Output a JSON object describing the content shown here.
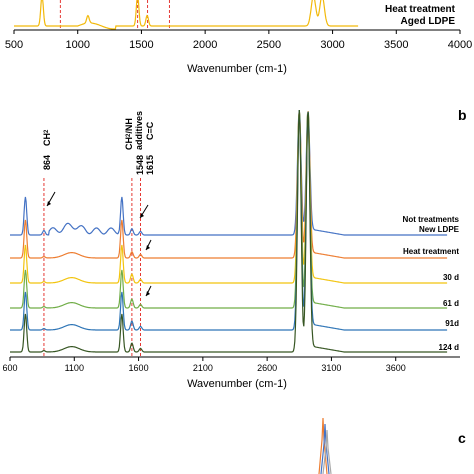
{
  "chart_data": [
    {
      "panel": "top",
      "type": "line",
      "xlabel": "Wavenumber (cm-1)",
      "xlim": [
        500,
        4000
      ],
      "x_ticks": [
        "500",
        "1000",
        "1500",
        "2000",
        "2500",
        "3000",
        "3500",
        "4000"
      ],
      "x_tick_values": [
        500,
        1000,
        1500,
        2000,
        2500,
        3000,
        3500,
        4000
      ],
      "legend": [
        "Heat treatment",
        "Aged LDPE"
      ],
      "marked_wavenumbers": [
        864,
        1470,
        1548,
        1720
      ],
      "series": [
        {
          "color": "#f2b90a",
          "peaks": [
            [
              720,
              1.0
            ],
            [
              1080,
              0.25
            ],
            [
              1470,
              1.0
            ],
            [
              1545,
              0.35
            ],
            [
              2850,
              1.0
            ],
            [
              2918,
              1.0
            ]
          ]
        }
      ]
    },
    {
      "panel": "b",
      "type": "line",
      "xlabel": "Wavenumber (cm-1)",
      "xlim": [
        600,
        4100
      ],
      "x_ticks": [
        "600",
        "1100",
        "1600",
        "2100",
        "2600",
        "3100",
        "3600"
      ],
      "x_tick_values": [
        600,
        1100,
        1600,
        2100,
        2600,
        3100,
        3600
      ],
      "marked_wavenumbers": [
        864,
        1548,
        1615
      ],
      "annotations": [
        {
          "text": "864",
          "x": 864
        },
        {
          "text": "CH₂",
          "x": 864
        },
        {
          "text": "1548",
          "x": 1548
        },
        {
          "text": "1615",
          "x": 1615
        },
        {
          "text": "CH₂/NH",
          "x": 1480
        },
        {
          "text": "additives",
          "x": 1500
        },
        {
          "text": "C=C",
          "x": 1640
        }
      ],
      "series": [
        {
          "name": "Not treatments New LDPE",
          "color": "#4472c4"
        },
        {
          "name": "Heat treatment",
          "color": "#ed7d31"
        },
        {
          "name": "30 d",
          "color": "#f2c40f"
        },
        {
          "name": "61 d",
          "color": "#70ad47"
        },
        {
          "name": "91d",
          "color": "#2e75b6"
        },
        {
          "name": "124 d",
          "color": "#375623"
        }
      ],
      "peaks": [
        [
          720,
          1.0
        ],
        [
          864,
          0.25
        ],
        [
          1080,
          0.3
        ],
        [
          1470,
          1.0
        ],
        [
          1548,
          0.35
        ],
        [
          1615,
          0.2
        ],
        [
          2850,
          1.0
        ],
        [
          2918,
          1.0
        ]
      ]
    },
    {
      "panel": "c",
      "type": "line",
      "series": [
        {
          "color": "#ed7d31"
        },
        {
          "color": "#4472c4"
        },
        {
          "color": "#a9a9a9"
        }
      ]
    }
  ],
  "labels": {
    "top_legend_1": "Heat treatment",
    "top_legend_2": "Aged LDPE",
    "top_xlabel": "Wavenumber (cm-1)",
    "b_xlabel": "Wavenumber (cm-1)",
    "panel_b": "b",
    "panel_c": "c",
    "ann_864": "864",
    "ann_ch2": "CH",
    "ann_ch2_sub": "2",
    "ann_1548": "1548",
    "ann_1615": "1615",
    "ann_ch2nh": "CH",
    "ann_ch2nh_sub": "2",
    "ann_ch2nh_rest": "/NH",
    "ann_additives": "additives",
    "ann_cc": "C=C"
  },
  "b_legend_lines": {
    "s0_l1": "Not treatments",
    "s0_l2": "New LDPE",
    "s1": "Heat treatment",
    "s2": "30 d",
    "s3": "61 d",
    "s4": "91d",
    "s5": "124 d"
  }
}
